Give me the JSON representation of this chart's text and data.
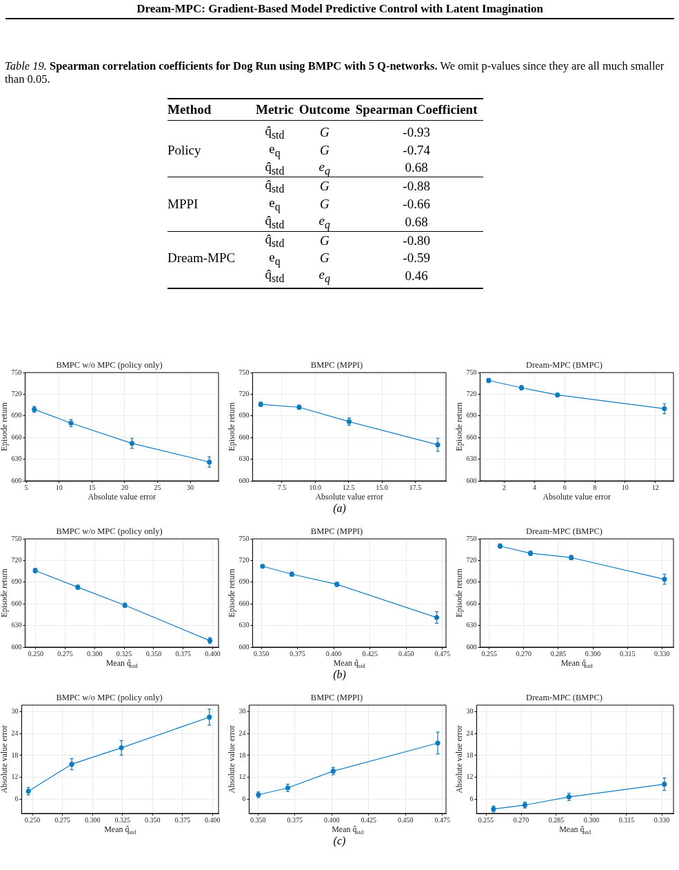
{
  "chart_data": [
    {
      "type": "other",
      "title": "Dream-MPC: Gradient-Based Model Predictive Control with Latent Imagination",
      "annotations": [
        "Table 19.",
        "Spearman correlation coefficients for Dog Run using BMPC with 5 Q-networks.",
        "We omit p-values since they are all much smaller than 0.05."
      ],
      "categories": [
        "Method",
        "Metric",
        "Outcome",
        "Spearman Coefficient"
      ],
      "cell_labels": [
        [
          null,
          "q̂$_{std}$",
          "G",
          "-0.93"
        ],
        [
          "Policy",
          "e$_{q}$",
          "G",
          "-0.74"
        ],
        [
          null,
          "q̂$_{std}$",
          "e$_{q}$",
          "0.68"
        ],
        [
          null,
          "q̂$_{std}$",
          "G",
          "-0.88"
        ],
        [
          "MPPI",
          "e$_{q}$",
          "G",
          "-0.66"
        ],
        [
          null,
          "q̂$_{std}$",
          "e$_{q}$",
          "0.68"
        ],
        [
          null,
          "q̂$_{std}$",
          "G",
          "-0.80"
        ],
        [
          "Dream-MPC",
          "e$_{q}$",
          "G",
          "-0.59"
        ],
        [
          null,
          "q̂$_{std}$",
          "e$_{q}$",
          "0.46"
        ]
      ]
    },
    {
      "type": "line",
      "title": "BMPC w/o MPC (policy only)",
      "xlabel": "Absolute value error",
      "ylabel": "Episode return",
      "xlim": [
        4.8,
        34.3
      ],
      "xticks": [
        5,
        10,
        15,
        20,
        25,
        30
      ],
      "ylim": [
        600,
        750
      ],
      "yticks": [
        600,
        630,
        660,
        690,
        720,
        750
      ],
      "grid": true,
      "marker": "circle",
      "x": [
        6.2,
        11.8,
        21.1,
        32.9
      ],
      "series": [
        {
          "color": "#0f7bc0",
          "values": [
            699,
            680,
            652,
            626
          ],
          "errors": [
            4,
            5,
            7,
            7
          ]
        }
      ]
    },
    {
      "type": "line",
      "title": "BMPC (MPPI)",
      "xlabel": "Absolute value error",
      "ylabel": "Episode return",
      "xlim": [
        5.3,
        19.8
      ],
      "xticks": [
        7.5,
        {
          "value": 10,
          "label": "10.0"
        },
        12.5,
        {
          "value": 15,
          "label": "15.0"
        },
        17.5
      ],
      "ylim": [
        600,
        750
      ],
      "yticks": [
        600,
        630,
        660,
        690,
        720,
        750
      ],
      "grid": true,
      "marker": "circle",
      "x": [
        5.91,
        8.79,
        12.54,
        19.18
      ],
      "annotations": [
        "(a)"
      ],
      "series": [
        {
          "color": "#0f7bc0",
          "values": [
            706,
            702,
            682,
            650
          ],
          "errors": [
            3,
            3,
            5,
            9
          ]
        }
      ]
    },
    {
      "type": "line",
      "title": "Dream-MPC (BMPC)",
      "xlabel": "Absolute value error",
      "ylabel": "Episode return",
      "xlim": [
        0.4,
        13.2
      ],
      "xticks": [
        2,
        4,
        6,
        8,
        10,
        12
      ],
      "ylim": [
        600,
        750
      ],
      "yticks": [
        600,
        630,
        660,
        690,
        720,
        750
      ],
      "grid": true,
      "marker": "circle",
      "x": [
        0.97,
        3.14,
        5.52,
        12.6
      ],
      "series": [
        {
          "color": "#0f7bc0",
          "values": [
            739,
            729,
            719,
            700
          ],
          "errors": [
            3,
            3,
            2,
            7
          ]
        }
      ]
    },
    {
      "type": "line",
      "title": "BMPC w/o MPC (policy only)",
      "xlabel": "Mean q̂$_{std}$",
      "ylabel": "Episode return",
      "xlim": [
        0.241,
        0.405
      ],
      "xticks": [
        {
          "value": 0.25,
          "label": "0.250"
        },
        {
          "value": 0.275,
          "label": "0.275"
        },
        {
          "value": 0.3,
          "label": "0.300"
        },
        {
          "value": 0.325,
          "label": "0.325"
        },
        {
          "value": 0.35,
          "label": "0.350"
        },
        {
          "value": 0.375,
          "label": "0.375"
        },
        {
          "value": 0.4,
          "label": "0.400"
        }
      ],
      "ylim": [
        600,
        750
      ],
      "yticks": [
        600,
        630,
        660,
        690,
        720,
        750
      ],
      "grid": true,
      "marker": "circle",
      "x": [
        0.2496,
        0.2857,
        0.3256,
        0.3977
      ],
      "series": [
        {
          "color": "#0f7bc0",
          "values": [
            706,
            683,
            658,
            609
          ],
          "errors": [
            3,
            3,
            3,
            4
          ]
        }
      ]
    },
    {
      "type": "line",
      "title": "BMPC (MPPI)",
      "xlabel": "Mean q̂$_{std}$",
      "ylabel": "Episode return",
      "xlim": [
        0.344,
        0.4775
      ],
      "xticks": [
        {
          "value": 0.35,
          "label": "0.350"
        },
        {
          "value": 0.375,
          "label": "0.375"
        },
        {
          "value": 0.4,
          "label": "0.400"
        },
        {
          "value": 0.425,
          "label": "0.425"
        },
        {
          "value": 0.45,
          "label": "0.450"
        },
        {
          "value": 0.475,
          "label": "0.475"
        }
      ],
      "ylim": [
        600,
        750
      ],
      "yticks": [
        600,
        630,
        660,
        690,
        720,
        750
      ],
      "grid": true,
      "marker": "circle",
      "x": [
        0.3509,
        0.3711,
        0.4022,
        0.4711
      ],
      "annotations": [
        "(b)"
      ],
      "series": [
        {
          "color": "#0f7bc0",
          "values": [
            712,
            701,
            687,
            641
          ],
          "errors": [
            2,
            3,
            3,
            8
          ]
        }
      ]
    },
    {
      "type": "line",
      "title": "Dream-MPC (BMPC)",
      "xlabel": "Mean q̂$_{std}$",
      "ylabel": "Episode return",
      "xlim": [
        0.251,
        0.335
      ],
      "xticks": [
        0.255,
        {
          "value": 0.27,
          "label": "0.270"
        },
        0.285,
        {
          "value": 0.3,
          "label": "0.300"
        },
        0.315,
        {
          "value": 0.33,
          "label": "0.330"
        }
      ],
      "ylim": [
        600,
        750
      ],
      "yticks": [
        600,
        630,
        660,
        690,
        720,
        750
      ],
      "grid": true,
      "marker": "circle",
      "x": [
        0.2597,
        0.2729,
        0.2906,
        0.3311
      ],
      "series": [
        {
          "color": "#0f7bc0",
          "values": [
            740,
            730,
            724,
            694
          ],
          "errors": [
            3,
            3,
            3,
            7
          ]
        }
      ]
    },
    {
      "type": "line",
      "title": "BMPC w/o MPC (policy only)",
      "xlabel": "Mean q̂$_{std}$",
      "ylabel": "Absolute value error",
      "xlim": [
        0.241,
        0.405
      ],
      "xticks": [
        {
          "value": 0.25,
          "label": "0.250"
        },
        {
          "value": 0.275,
          "label": "0.275"
        },
        {
          "value": 0.3,
          "label": "0.300"
        },
        {
          "value": 0.325,
          "label": "0.325"
        },
        {
          "value": 0.35,
          "label": "0.350"
        },
        {
          "value": 0.375,
          "label": "0.375"
        },
        {
          "value": 0.4,
          "label": "0.400"
        }
      ],
      "ylim": [
        2.1,
        31.8
      ],
      "yticks": [
        6,
        12,
        18,
        24,
        30
      ],
      "grid": true,
      "marker": "circle",
      "x": [
        0.2466,
        0.2827,
        0.3241,
        0.3974
      ],
      "series": [
        {
          "color": "#0f7bc0",
          "values": [
            8.2,
            15.6,
            20.1,
            28.5
          ],
          "errors": [
            1,
            1.5,
            2,
            2.2
          ]
        }
      ]
    },
    {
      "type": "line",
      "title": "BMPC (MPPI)",
      "xlabel": "Mean q̂$_{std}$",
      "ylabel": "Absolute value error",
      "xlim": [
        0.344,
        0.4775
      ],
      "xticks": [
        {
          "value": 0.35,
          "label": "0.350"
        },
        {
          "value": 0.375,
          "label": "0.375"
        },
        {
          "value": 0.4,
          "label": "0.400"
        },
        {
          "value": 0.425,
          "label": "0.425"
        },
        {
          "value": 0.45,
          "label": "0.450"
        },
        {
          "value": 0.475,
          "label": "0.475"
        }
      ],
      "ylim": [
        2.1,
        31.8
      ],
      "yticks": [
        6,
        12,
        18,
        24,
        30
      ],
      "grid": true,
      "marker": "circle",
      "x": [
        0.3503,
        0.3702,
        0.401,
        0.4719
      ],
      "annotations": [
        "(c)"
      ],
      "series": [
        {
          "color": "#0f7bc0",
          "values": [
            7.2,
            9.1,
            13.7,
            21.4
          ],
          "errors": [
            0.8,
            1,
            1,
            3
          ]
        }
      ]
    },
    {
      "type": "line",
      "title": "Dream-MPC (BMPC)",
      "xlabel": "Mean q̂$_{std}$",
      "ylabel": "Absolute value error",
      "xlim": [
        0.251,
        0.335
      ],
      "xticks": [
        0.255,
        {
          "value": 0.27,
          "label": "0.270"
        },
        0.285,
        {
          "value": 0.3,
          "label": "0.300"
        },
        0.315,
        {
          "value": 0.33,
          "label": "0.330"
        }
      ],
      "ylim": [
        2.1,
        31.8
      ],
      "yticks": [
        6,
        12,
        18,
        24,
        30
      ],
      "grid": true,
      "marker": "circle",
      "x": [
        0.2582,
        0.2716,
        0.2904,
        0.3311
      ],
      "series": [
        {
          "color": "#0f7bc0",
          "values": [
            3.3,
            4.4,
            6.6,
            10.1
          ],
          "errors": [
            0.8,
            0.8,
            1,
            1.7
          ]
        }
      ]
    }
  ]
}
